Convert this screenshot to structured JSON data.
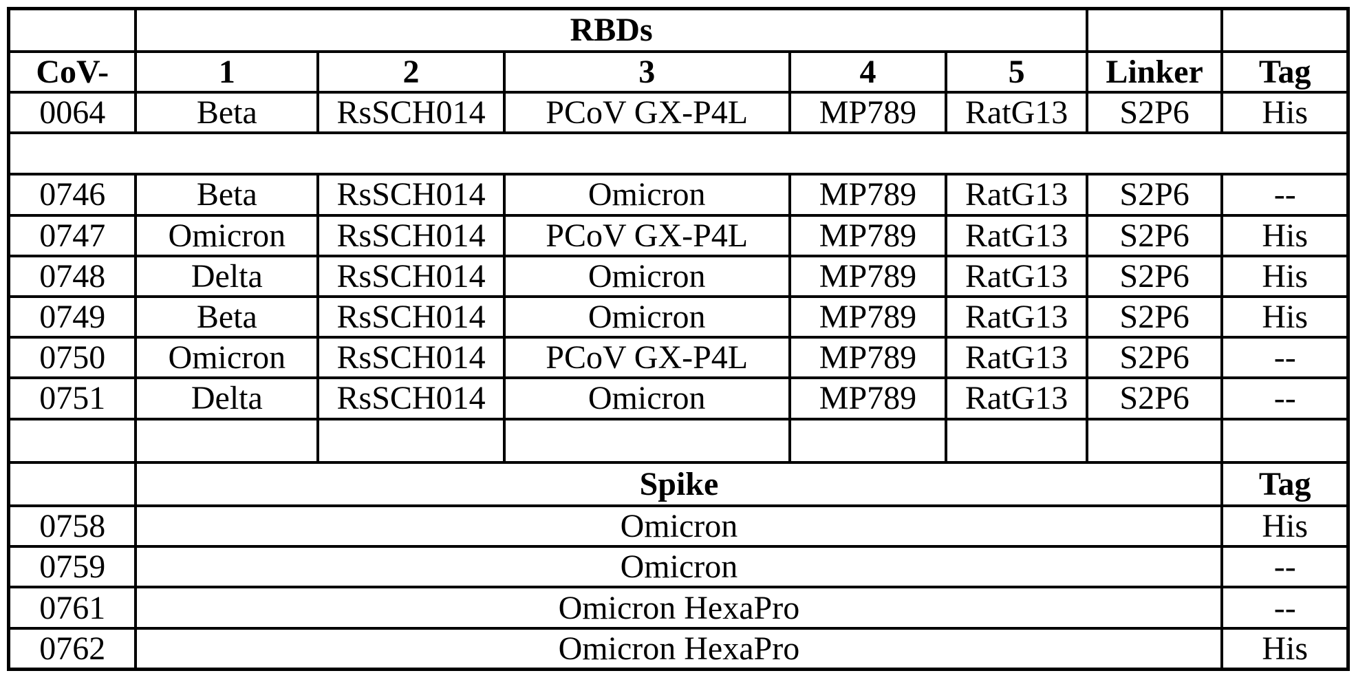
{
  "table": {
    "header": {
      "group_label": "RBDs",
      "cov_label": "CoV-",
      "rbd_cols": [
        "1",
        "2",
        "3",
        "4",
        "5"
      ],
      "linker_label": "Linker",
      "tag_label": "Tag"
    },
    "rbd_rows": [
      {
        "id": "0064",
        "rbd1": "Beta",
        "rbd2": "RsSCH014",
        "rbd3": "PCoV GX-P4L",
        "rbd4": "MP789",
        "rbd5": "RatG13",
        "linker": "S2P6",
        "tag": "His"
      },
      {
        "id": "0746",
        "rbd1": "Beta",
        "rbd2": "RsSCH014",
        "rbd3": "Omicron",
        "rbd4": "MP789",
        "rbd5": "RatG13",
        "linker": "S2P6",
        "tag": "--"
      },
      {
        "id": "0747",
        "rbd1": "Omicron",
        "rbd2": "RsSCH014",
        "rbd3": "PCoV GX-P4L",
        "rbd4": "MP789",
        "rbd5": "RatG13",
        "linker": "S2P6",
        "tag": "His"
      },
      {
        "id": "0748",
        "rbd1": "Delta",
        "rbd2": "RsSCH014",
        "rbd3": "Omicron",
        "rbd4": "MP789",
        "rbd5": "RatG13",
        "linker": "S2P6",
        "tag": "His"
      },
      {
        "id": "0749",
        "rbd1": "Beta",
        "rbd2": "RsSCH014",
        "rbd3": "Omicron",
        "rbd4": "MP789",
        "rbd5": "RatG13",
        "linker": "S2P6",
        "tag": "His"
      },
      {
        "id": "0750",
        "rbd1": "Omicron",
        "rbd2": "RsSCH014",
        "rbd3": "PCoV GX-P4L",
        "rbd4": "MP789",
        "rbd5": "RatG13",
        "linker": "S2P6",
        "tag": "--"
      },
      {
        "id": "0751",
        "rbd1": "Delta",
        "rbd2": "RsSCH014",
        "rbd3": "Omicron",
        "rbd4": "MP789",
        "rbd5": "RatG13",
        "linker": "S2P6",
        "tag": "--"
      }
    ],
    "spike_header": {
      "group_label": "Spike",
      "tag_label": "Tag"
    },
    "spike_rows": [
      {
        "id": "0758",
        "spike": "Omicron",
        "tag": "His"
      },
      {
        "id": "0759",
        "spike": "Omicron",
        "tag": "--"
      },
      {
        "id": "0761",
        "spike": "Omicron HexaPro",
        "tag": "--"
      },
      {
        "id": "0762",
        "spike": "Omicron HexaPro",
        "tag": "His"
      }
    ],
    "colors": {
      "border": "#000000",
      "text": "#000000",
      "background": "#ffffff"
    }
  }
}
